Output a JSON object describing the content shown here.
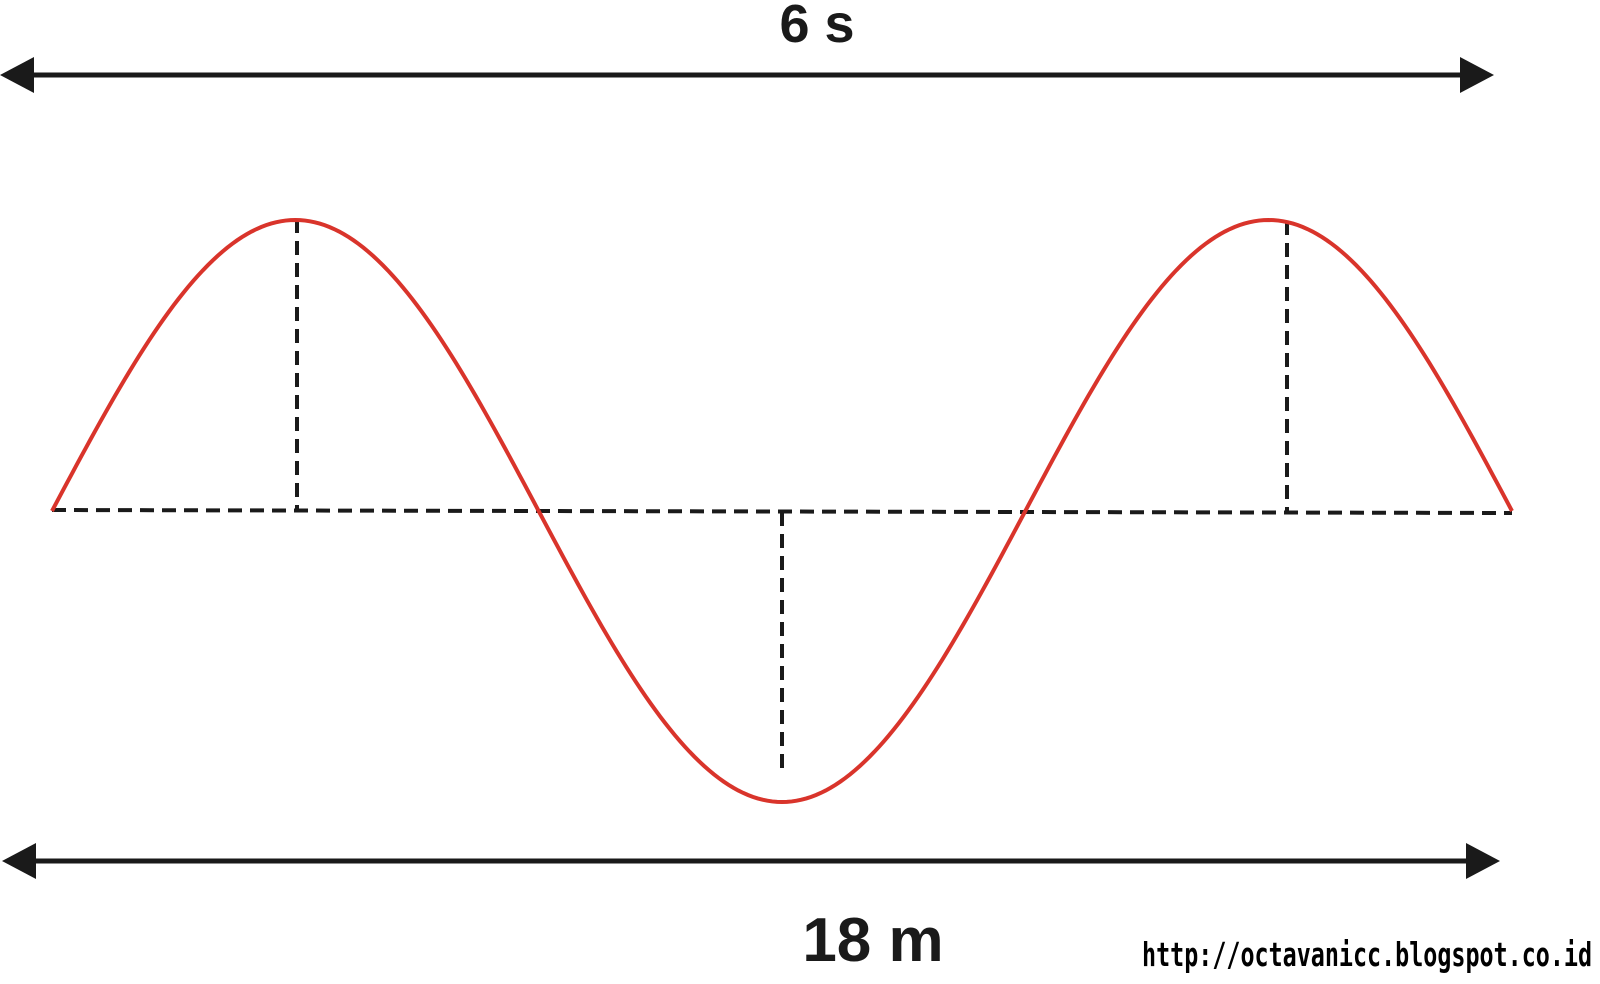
{
  "diagram": {
    "time_label": "6 s",
    "distance_label": "18 m",
    "watermark": "http://octavanicc.blogspot.co.id"
  },
  "colors": {
    "wave": "#d9342b",
    "arrows": "#1a1a1a",
    "guides": "#1a1a1a",
    "background": "#ffffff"
  }
}
